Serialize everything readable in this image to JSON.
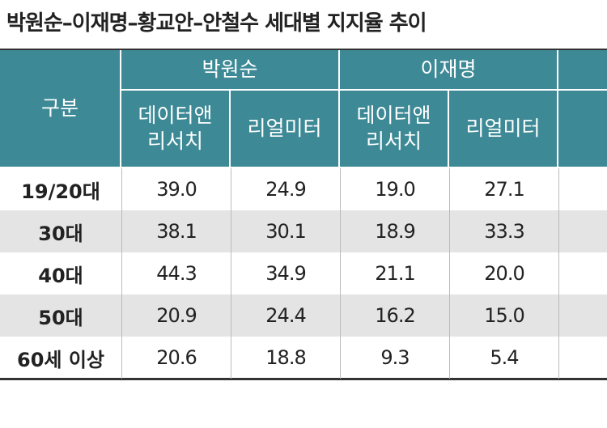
{
  "title": "박원순–이재명–황교안–안철수 세대별 지지율 추이",
  "table": {
    "stub_header": "구분",
    "groups": [
      {
        "name": "박원순",
        "subcolumns": [
          "데이터앤 리서치",
          "리얼미터"
        ]
      },
      {
        "name": "이재명",
        "subcolumns": [
          "데이터앤 리서치",
          "리얼미터"
        ]
      }
    ],
    "rows": [
      {
        "label": "19/20대",
        "values": [
          "39.0",
          "24.9",
          "19.0",
          "27.1"
        ]
      },
      {
        "label": "30대",
        "values": [
          "38.1",
          "30.1",
          "18.9",
          "33.3"
        ]
      },
      {
        "label": "40대",
        "values": [
          "44.3",
          "34.9",
          "21.1",
          "20.0"
        ]
      },
      {
        "label": "50대",
        "values": [
          "20.9",
          "24.4",
          "16.2",
          "15.0"
        ]
      },
      {
        "label": "60세 이상",
        "values": [
          "20.6",
          "18.8",
          "9.3",
          "5.4"
        ]
      }
    ]
  }
}
